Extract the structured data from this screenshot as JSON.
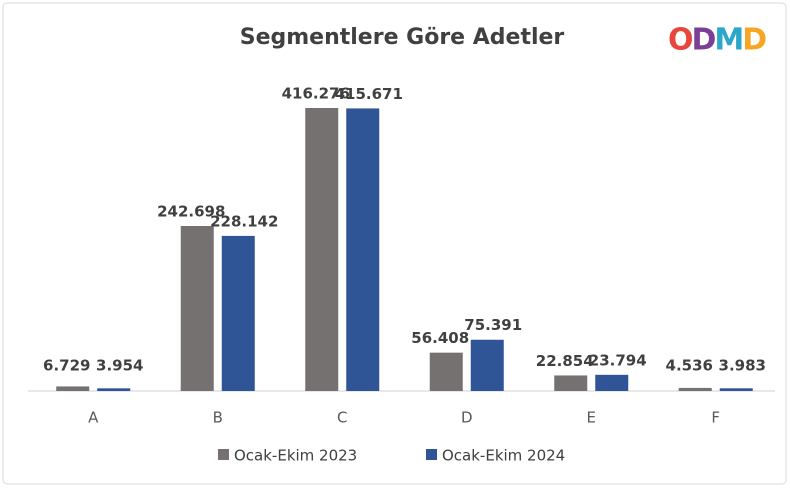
{
  "logo": "ODMD",
  "chart_data": {
    "type": "bar",
    "title": "Segmentlere Göre Adetler",
    "categories": [
      "A",
      "B",
      "C",
      "D",
      "E",
      "F"
    ],
    "series": [
      {
        "name": "Ocak-Ekim 2023",
        "color": "#767171",
        "values": [
          6729,
          242698,
          416276,
          56408,
          22854,
          4536
        ],
        "value_labels": [
          "6.729",
          "242.698",
          "416.276",
          "56.408",
          "22.854",
          "4.536"
        ]
      },
      {
        "name": "Ocak-Ekim 2024",
        "color": "#2f5597",
        "values": [
          3954,
          228142,
          415671,
          75391,
          23794,
          3983
        ],
        "value_labels": [
          "3.954",
          "228.142",
          "415.671",
          "75.391",
          "23.794",
          "3.983"
        ]
      }
    ]
  }
}
